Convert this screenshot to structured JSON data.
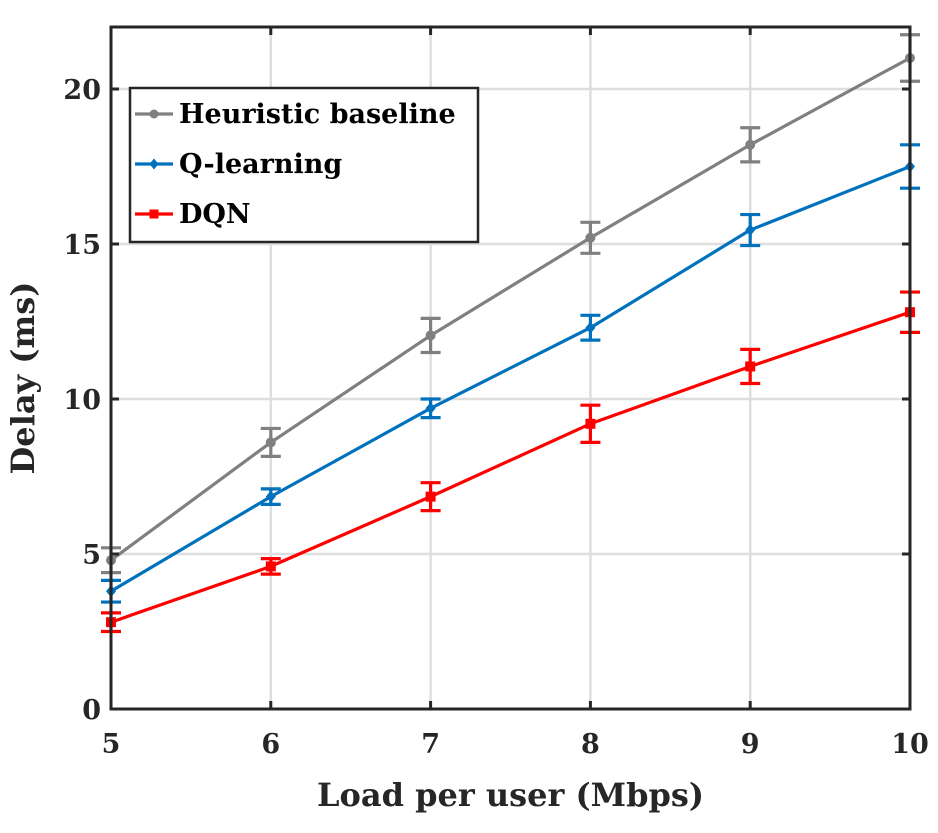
{
  "chart_data": {
    "type": "line",
    "title": "",
    "xlabel": "Load per user (Mbps)",
    "ylabel": "Delay (ms)",
    "x": [
      5,
      6,
      7,
      8,
      9,
      10
    ],
    "xlim": [
      5,
      10
    ],
    "ylim": [
      0,
      22
    ],
    "xticks": [
      "5",
      "6",
      "7",
      "8",
      "9",
      "10"
    ],
    "yticks": [
      "0",
      "5",
      "10",
      "15",
      "20"
    ],
    "grid": true,
    "legend_position": "upper left",
    "error_bars": true,
    "series": [
      {
        "name": "Heuristic baseline",
        "color": "#808080",
        "marker": "circle",
        "values": [
          4.8,
          8.6,
          12.05,
          15.2,
          18.2,
          21.0
        ],
        "errors": [
          0.4,
          0.45,
          0.55,
          0.5,
          0.55,
          0.75
        ]
      },
      {
        "name": "Q-learning",
        "color": "#0072BD",
        "marker": "diamond",
        "values": [
          3.8,
          6.85,
          9.7,
          12.3,
          15.45,
          17.5
        ],
        "errors": [
          0.35,
          0.25,
          0.3,
          0.4,
          0.5,
          0.7
        ]
      },
      {
        "name": "DQN",
        "color": "#FF0000",
        "marker": "square",
        "values": [
          2.8,
          4.6,
          6.85,
          9.2,
          11.05,
          12.8
        ],
        "errors": [
          0.3,
          0.25,
          0.45,
          0.6,
          0.55,
          0.65
        ]
      }
    ]
  }
}
